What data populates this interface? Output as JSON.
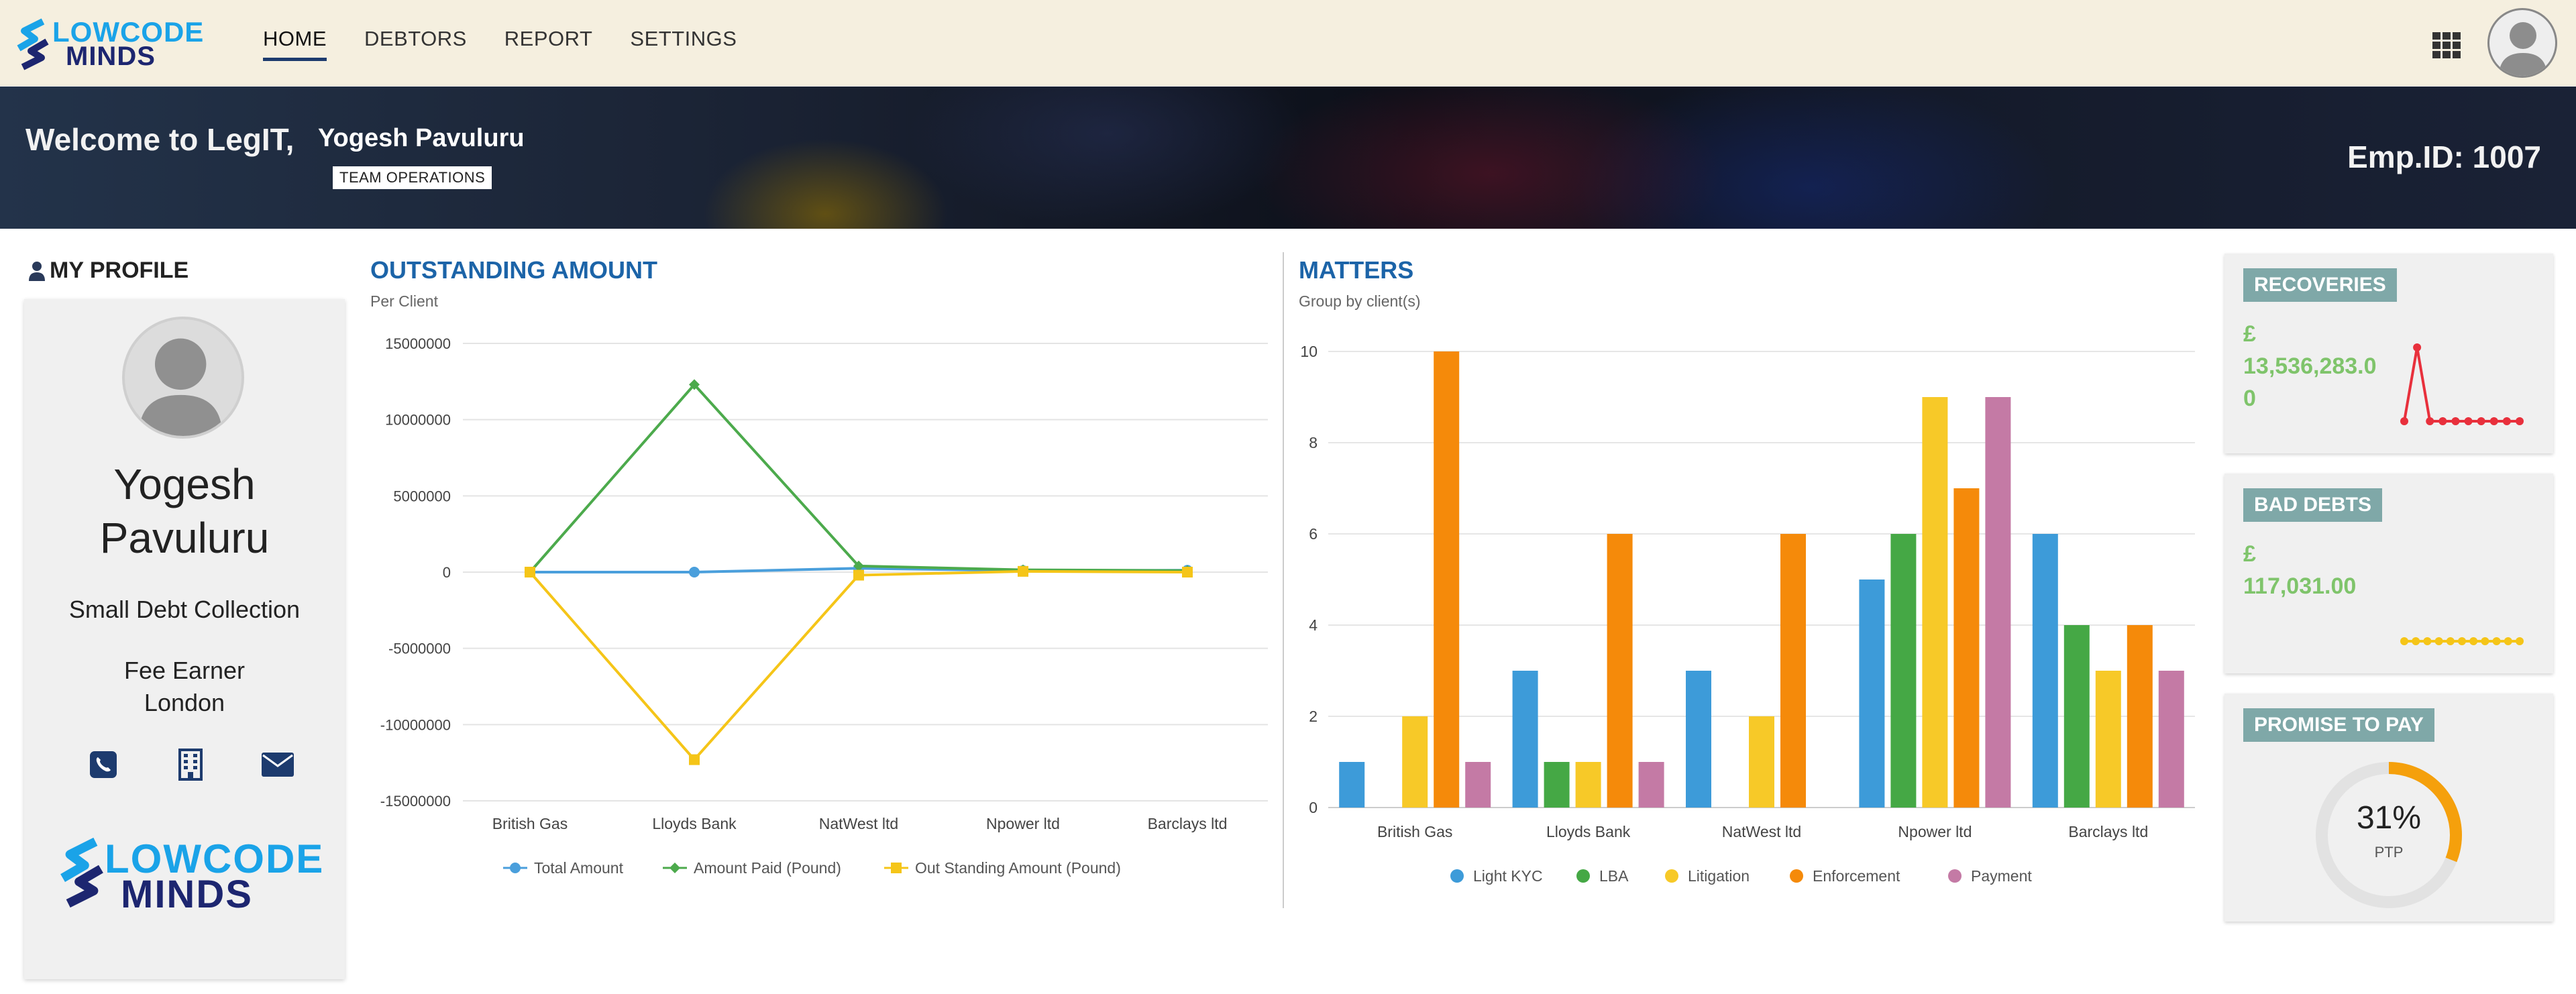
{
  "brand": {
    "word1": "LOWCODE",
    "word2": "MINDS",
    "blue": "#1aa3e8",
    "navy": "#1d2670"
  },
  "nav": {
    "items": [
      "HOME",
      "DEBTORS",
      "REPORT",
      "SETTINGS"
    ],
    "active": "HOME"
  },
  "header_icons": {
    "apps": "grid-icon",
    "user": "avatar"
  },
  "banner": {
    "welcome": "Welcome to LegIT,",
    "user_name": "Yogesh Pavuluru",
    "team": "TEAM OPERATIONS",
    "emp_id": "Emp.ID: 1007"
  },
  "profile": {
    "section_title": "MY PROFILE",
    "name_line1": "Yogesh",
    "name_line2": "Pavuluru",
    "department": "Small Debt Collection",
    "designation": "Fee Earner",
    "location": "London",
    "contact_icons": [
      "phone-icon",
      "building-icon",
      "envelope-icon"
    ]
  },
  "outstanding": {
    "title": "OUTSTANDING AMOUNT",
    "subtitle": "Per Client",
    "chart_data": {
      "type": "line",
      "x": [
        "British Gas",
        "Lloyds Bank",
        "NatWest ltd",
        "Npower ltd",
        "Barclays ltd"
      ],
      "ylim": [
        -15000000,
        15000000
      ],
      "yticks": [
        15000000,
        10000000,
        5000000,
        0,
        -5000000,
        -10000000,
        -15000000
      ],
      "grid": true,
      "legend_position": "bottom",
      "series": [
        {
          "name": "Total Amount",
          "color": "#4a9fdc",
          "marker": "circle",
          "values": [
            0,
            0,
            250000,
            100000,
            120000
          ]
        },
        {
          "name": "Amount Paid (Pound)",
          "color": "#4caa4c",
          "marker": "diamond",
          "values": [
            0,
            12300000,
            400000,
            150000,
            100000
          ]
        },
        {
          "name": "Out Standing Amount (Pound)",
          "color": "#f5c518",
          "marker": "square",
          "values": [
            0,
            -12300000,
            -200000,
            50000,
            0
          ]
        }
      ]
    }
  },
  "matters": {
    "title": "MATTERS",
    "subtitle": "Group by client(s)",
    "chart_data": {
      "type": "bar",
      "categories": [
        "British Gas",
        "Lloyds Bank",
        "NatWest ltd",
        "Npower ltd",
        "Barclays ltd"
      ],
      "ylim": [
        0,
        10
      ],
      "yticks": [
        0,
        2,
        4,
        6,
        8,
        10
      ],
      "grid": true,
      "legend_position": "bottom",
      "series": [
        {
          "name": "Light KYC",
          "color": "#3d9bd9",
          "values": [
            1,
            3,
            3,
            5,
            6
          ]
        },
        {
          "name": "LBA",
          "color": "#45a845",
          "values": [
            0,
            1,
            0,
            6,
            4
          ]
        },
        {
          "name": "Litigation",
          "color": "#f7c928",
          "values": [
            2,
            1,
            2,
            9,
            3
          ]
        },
        {
          "name": "Enforcement",
          "color": "#f58a0a",
          "values": [
            10,
            6,
            6,
            7,
            4
          ]
        },
        {
          "name": "Payment",
          "color": "#c47aa5",
          "values": [
            1,
            1,
            0,
            9,
            3
          ]
        }
      ]
    }
  },
  "kpis": {
    "recoveries": {
      "label": "RECOVERIES",
      "currency": "£",
      "value": "13,536,283.00",
      "spark_color": "#e8303c",
      "spark": [
        0,
        1,
        0,
        0,
        0,
        0,
        0,
        0,
        0,
        0
      ]
    },
    "bad_debts": {
      "label": "BAD DEBTS",
      "currency": "£",
      "value": "117,031.00",
      "spark_color": "#f5c518",
      "spark": [
        0,
        0,
        0,
        0,
        0,
        0,
        0,
        0,
        0,
        0,
        0
      ]
    },
    "promise_to_pay": {
      "label": "PROMISE TO PAY",
      "percent": 31,
      "percent_text": "31%",
      "caption": "PTP",
      "color": "#f5a00c",
      "track": "#e2e2e2"
    }
  }
}
